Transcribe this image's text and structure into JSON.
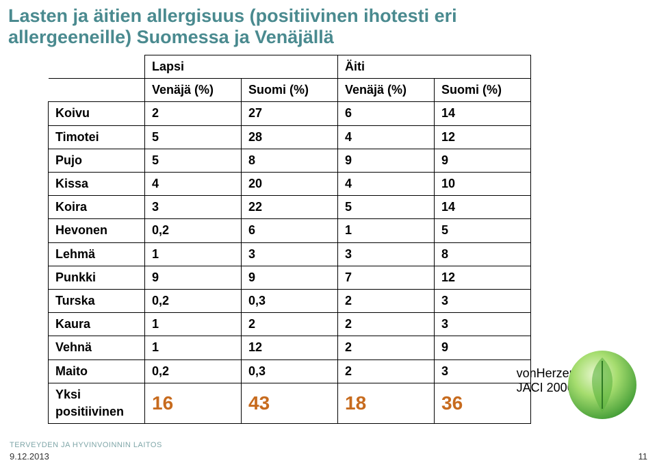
{
  "title_l1": "Lasten ja äitien allergisuus (positiivinen ihotesti eri",
  "title_l2": "allergeeneille) Suomessa ja Venäjällä",
  "headers": {
    "lapsi": "Lapsi",
    "aiti": "Äiti",
    "venaja_pct": "Venäjä (%)",
    "suomi_pct": "Suomi (%)"
  },
  "rows": [
    {
      "label": "Koivu",
      "v1": "2",
      "v2": "27",
      "v3": "6",
      "v4": "14"
    },
    {
      "label": "Timotei",
      "v1": "5",
      "v2": "28",
      "v3": "4",
      "v4": "12"
    },
    {
      "label": "Pujo",
      "v1": "5",
      "v2": "8",
      "v3": "9",
      "v4": "9"
    },
    {
      "label": "Kissa",
      "v1": "4",
      "v2": "20",
      "v3": "4",
      "v4": "10"
    },
    {
      "label": "Koira",
      "v1": "3",
      "v2": "22",
      "v3": "5",
      "v4": "14"
    },
    {
      "label": "Hevonen",
      "v1": "0,2",
      "v2": "6",
      "v3": "1",
      "v4": "5"
    },
    {
      "label": "Lehmä",
      "v1": "1",
      "v2": "3",
      "v3": "3",
      "v4": "8"
    },
    {
      "label": "Punkki",
      "v1": "9",
      "v2": "9",
      "v3": "7",
      "v4": "12"
    },
    {
      "label": "Turska",
      "v1": "0,2",
      "v2": "0,3",
      "v3": "2",
      "v4": "3"
    },
    {
      "label": "Kaura",
      "v1": "1",
      "v2": "2",
      "v3": "2",
      "v4": "3"
    },
    {
      "label": "Vehnä",
      "v1": "1",
      "v2": "12",
      "v3": "2",
      "v4": "9"
    },
    {
      "label": "Maito",
      "v1": "0,2",
      "v2": "0,3",
      "v3": "2",
      "v4": "3"
    }
  ],
  "yksi": {
    "label_l1": "Yksi",
    "label_l2": "positiivinen",
    "v1": "16",
    "v2": "43",
    "v3": "18",
    "v4": "36"
  },
  "citation_l1": "vonHerzen L et al.",
  "citation_l2": "JACI 2006",
  "footer_date": "9.12.2013",
  "page_num": "11",
  "thl_text": "TERVEYDEN JA HYVINVOINNIN LAITOS",
  "colors": {
    "title": "#4a8a8f",
    "yksi": "#c76b1e",
    "leaf_light": "#c9e8a3",
    "leaf_mid": "#8fcf5a",
    "leaf_dark": "#3a8a2e"
  }
}
